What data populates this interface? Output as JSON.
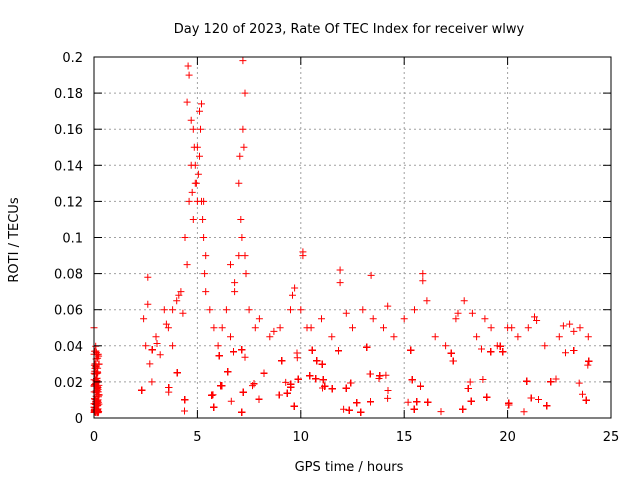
{
  "chart_data": {
    "type": "scatter",
    "title": "Day 120 of 2023, Rate Of TEC Index for receiver wlwy",
    "xlabel": "GPS time / hours",
    "ylabel": "ROTI / TECUs",
    "xlim": [
      0,
      25
    ],
    "ylim": [
      0,
      0.2
    ],
    "x_ticks": [
      0,
      5,
      10,
      15,
      20,
      25
    ],
    "x_tick_labels": [
      "0",
      "5",
      "10",
      "15",
      "20",
      "25"
    ],
    "y_ticks": [
      0,
      0.02,
      0.04,
      0.06,
      0.08,
      0.1,
      0.12,
      0.14,
      0.16,
      0.18,
      0.2
    ],
    "y_tick_labels": [
      "0",
      "0.02",
      "0.04",
      "0.06",
      "0.08",
      "0.1",
      "0.12",
      "0.14",
      "0.16",
      "0.18",
      "0.2"
    ],
    "grid": true,
    "marker": "+",
    "marker_color": "#ff0000",
    "series": [
      {
        "name": "ROTI",
        "x": [
          0.0,
          0.05,
          0.1,
          0.1,
          0.15,
          0.2,
          0.05,
          0.1,
          0.2,
          0.15,
          2.4,
          2.5,
          2.6,
          2.7,
          2.8,
          3.0,
          3.2,
          3.4,
          3.6,
          3.8,
          4.0,
          4.2,
          4.4,
          4.5,
          4.6,
          4.7,
          4.8,
          4.9,
          5.0,
          5.1,
          5.2,
          5.3,
          5.4,
          5.6,
          5.8,
          6.0,
          6.2,
          6.4,
          6.6,
          6.8,
          7.0,
          7.2,
          7.3,
          7.5,
          7.8,
          8.0,
          8.5,
          9.0,
          9.5,
          9.7,
          10.0,
          10.1,
          10.5,
          11.0,
          11.5,
          11.9,
          12.5,
          13.0,
          13.5,
          14.0,
          14.5,
          15.0,
          15.5,
          15.9,
          16.5,
          17.0,
          17.5,
          17.9,
          18.5,
          18.9,
          19.5,
          20.0,
          20.5,
          21.0,
          21.3,
          21.8,
          22.5,
          23.0,
          23.5,
          23.9,
          4.5,
          4.55,
          4.6,
          4.7,
          4.75,
          4.8,
          4.85,
          4.9,
          4.95,
          5.0,
          5.05,
          5.1,
          5.15,
          5.2,
          5.25,
          5.3,
          5.35,
          5.4,
          7.0,
          7.05,
          7.1,
          7.15,
          7.2,
          7.25,
          7.3,
          7.35,
          6.6,
          6.8,
          10.1,
          11.9,
          13.4,
          15.9,
          3.5,
          3.8,
          4.1,
          4.3,
          2.6,
          9.6,
          10.3,
          14.2,
          18.3,
          20.2,
          23.2,
          16.1,
          17.6,
          19.2,
          21.4,
          22.7,
          12.2,
          8.7
        ],
        "y": [
          0.05,
          0.03,
          0.02,
          0.012,
          0.035,
          0.02,
          0.008,
          0.015,
          0.01,
          0.025,
          0.055,
          0.04,
          0.078,
          0.03,
          0.02,
          0.045,
          0.035,
          0.06,
          0.05,
          0.04,
          0.065,
          0.07,
          0.1,
          0.085,
          0.12,
          0.14,
          0.16,
          0.13,
          0.15,
          0.17,
          0.12,
          0.1,
          0.09,
          0.06,
          0.05,
          0.04,
          0.05,
          0.06,
          0.045,
          0.07,
          0.09,
          0.16,
          0.18,
          0.06,
          0.05,
          0.055,
          0.045,
          0.05,
          0.06,
          0.072,
          0.06,
          0.09,
          0.05,
          0.055,
          0.045,
          0.082,
          0.05,
          0.06,
          0.055,
          0.05,
          0.045,
          0.055,
          0.06,
          0.08,
          0.045,
          0.04,
          0.055,
          0.065,
          0.045,
          0.055,
          0.04,
          0.05,
          0.045,
          0.05,
          0.056,
          0.04,
          0.045,
          0.052,
          0.05,
          0.045,
          0.175,
          0.195,
          0.19,
          0.165,
          0.125,
          0.11,
          0.15,
          0.14,
          0.13,
          0.12,
          0.135,
          0.145,
          0.16,
          0.174,
          0.11,
          0.12,
          0.08,
          0.07,
          0.13,
          0.145,
          0.11,
          0.1,
          0.198,
          0.15,
          0.09,
          0.08,
          0.085,
          0.075,
          0.092,
          0.075,
          0.079,
          0.076,
          0.052,
          0.06,
          0.068,
          0.058,
          0.063,
          0.068,
          0.05,
          0.062,
          0.058,
          0.05,
          0.048,
          0.065,
          0.058,
          0.05,
          0.054,
          0.051,
          0.058,
          0.048
        ]
      }
    ],
    "dense_band": {
      "segments": [
        [
          0.0,
          0.25
        ],
        [
          2.3,
          24.0
        ]
      ],
      "y_range": [
        0.003,
        0.04
      ],
      "points_per_hour": 380
    }
  }
}
